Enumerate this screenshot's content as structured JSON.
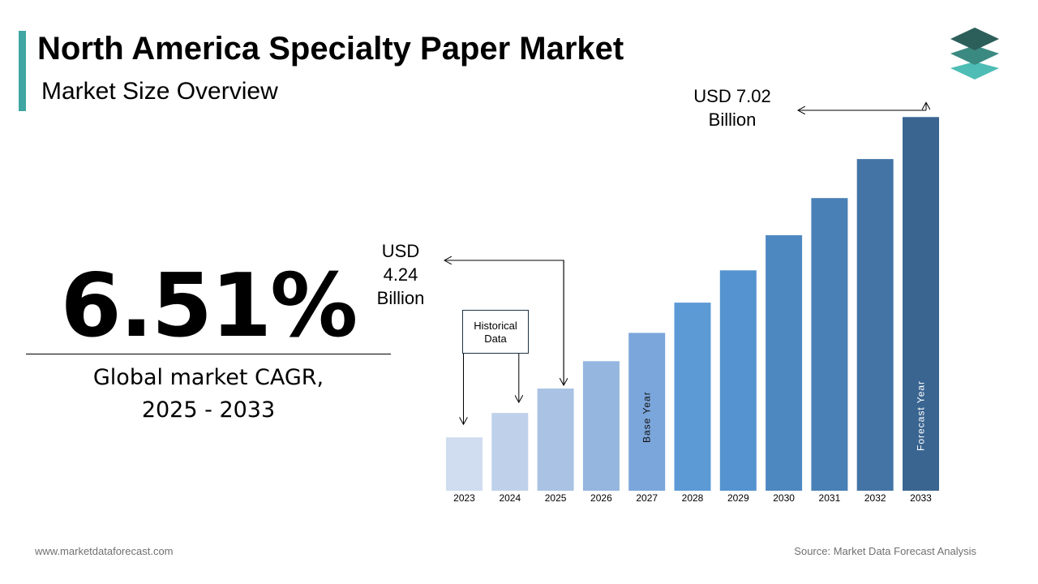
{
  "header": {
    "title": "North America Specialty Paper Market",
    "subtitle": "Market Size Overview"
  },
  "logo": {
    "icon": "stacked-layers-icon",
    "colors": [
      "#2d5f5a",
      "#3b8a82",
      "#4dbdb5"
    ]
  },
  "kpi": {
    "value": "6.51%",
    "label_line1": "Global market CAGR,",
    "label_line2": "2025 - 2033"
  },
  "annotations": {
    "start_value": [
      "USD",
      "4.24",
      "Billion"
    ],
    "end_value": [
      "USD 7.02",
      "Billion"
    ],
    "historical_box": [
      "Historical",
      "Data"
    ],
    "base_year": "Base Year",
    "forecast_year": "Forecast Year"
  },
  "footer": {
    "website": "www.marketdataforecast.com",
    "source": "Source: Market Data Forecast Analysis"
  },
  "chart_data": {
    "type": "bar",
    "categories": [
      "2023",
      "2024",
      "2025",
      "2026",
      "2027",
      "2028",
      "2029",
      "2030",
      "2031",
      "2032",
      "2033"
    ],
    "values": [
      3.74,
      3.99,
      4.24,
      4.52,
      4.81,
      5.12,
      5.45,
      5.81,
      6.19,
      6.59,
      7.02
    ],
    "colors": [
      "#d0dcef",
      "#bfd1ea",
      "#aac3e4",
      "#94b6df",
      "#7ba6db",
      "#5c9ad6",
      "#5493cf",
      "#4d88c1",
      "#4980b6",
      "#4474a5",
      "#3a6591"
    ],
    "base_year": "2027",
    "forecast_year": "2033",
    "value_labels": {
      "2025": "USD 4.24 Billion",
      "2033": "USD 7.02 Billion"
    },
    "title": "",
    "xlabel": "",
    "ylabel": "",
    "grid": false,
    "legend": "none"
  }
}
